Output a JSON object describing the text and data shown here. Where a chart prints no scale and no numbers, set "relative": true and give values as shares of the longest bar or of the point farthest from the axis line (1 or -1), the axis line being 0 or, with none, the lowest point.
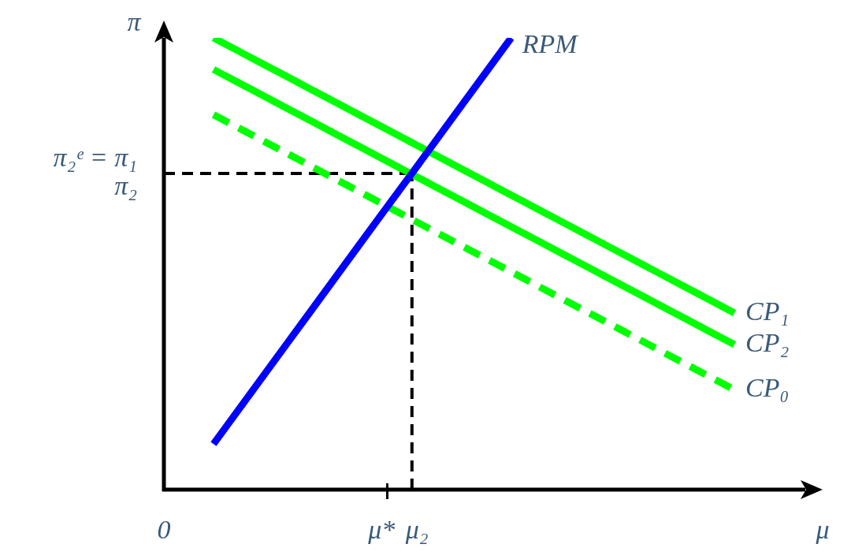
{
  "chart_data": {
    "type": "line",
    "relative": true,
    "xlabel": "μ",
    "ylabel": "π",
    "categories": [
      "0",
      null,
      null,
      null,
      null,
      null,
      null,
      null,
      null,
      "μ*",
      "μ₂",
      null,
      null,
      null,
      null,
      null,
      null,
      null,
      null,
      null,
      null,
      null,
      null,
      null
    ],
    "marker": "none",
    "legend": false,
    "grid": false,
    "annotations": [
      {
        "text": "π₂ᵉ = π₁",
        "x": "0",
        "y": 0.7
      },
      {
        "text": "π₂",
        "x": "0",
        "y": 0.7
      }
    ],
    "ref_lines": [
      {
        "axis": "y",
        "value": 0.7,
        "color": "#000000",
        "line_style": "dashed"
      },
      {
        "axis": "x",
        "value": "μ₂",
        "color": "#000000",
        "line_style": "dashed"
      }
    ],
    "series": [
      {
        "name": "RPM",
        "color": "#0000ff",
        "line_style": "solid",
        "values": [
          null,
          null,
          0.101,
          0.176,
          0.251,
          0.326,
          0.401,
          0.476,
          0.551,
          0.626,
          0.7,
          0.775,
          0.85,
          0.925,
          1.0,
          null,
          null,
          null,
          null,
          null,
          null,
          null,
          null,
          null
        ]
      },
      {
        "name": "CP₁",
        "color": "#00ff00",
        "line_style": "solid",
        "values": [
          null,
          null,
          1.0,
          0.971,
          0.942,
          0.913,
          0.884,
          0.855,
          0.826,
          0.797,
          0.768,
          0.739,
          0.71,
          0.681,
          0.652,
          0.623,
          0.594,
          0.565,
          0.536,
          0.507,
          0.478,
          0.449,
          0.42,
          0.391
        ]
      },
      {
        "name": "CP₂",
        "color": "#00ff00",
        "line_style": "solid",
        "values": [
          null,
          null,
          0.93,
          0.901,
          0.872,
          0.843,
          0.814,
          0.785,
          0.756,
          0.727,
          0.698,
          0.669,
          0.64,
          0.611,
          0.582,
          0.553,
          0.524,
          0.495,
          0.466,
          0.437,
          0.408,
          0.379,
          0.35,
          0.321
        ]
      },
      {
        "name": "CP₀",
        "color": "#00ff00",
        "line_style": "dashed",
        "values": [
          null,
          null,
          0.83,
          0.801,
          0.772,
          0.743,
          0.714,
          0.685,
          0.656,
          0.627,
          0.598,
          0.569,
          0.54,
          0.511,
          0.482,
          0.453,
          0.424,
          0.395,
          0.366,
          0.337,
          0.308,
          0.279,
          0.25,
          0.221
        ]
      }
    ]
  }
}
